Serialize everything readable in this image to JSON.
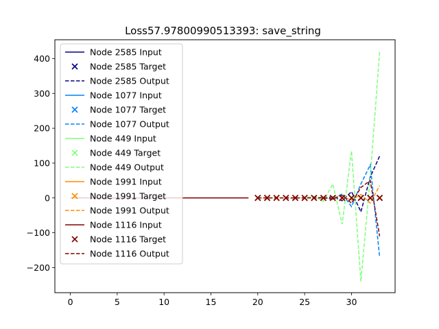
{
  "chart_data": {
    "type": "line",
    "title": "Loss57.97800990513393: save_string",
    "xlabel": "",
    "ylabel": "",
    "xlim": [
      -1.65,
      34.65
    ],
    "ylim": [
      -272,
      454
    ],
    "xticks": [
      0,
      5,
      10,
      15,
      20,
      25,
      30
    ],
    "yticks": [
      -200,
      -100,
      0,
      100,
      200,
      300,
      400
    ],
    "xtick_labels": [
      "0",
      "5",
      "10",
      "15",
      "20",
      "25",
      "30"
    ],
    "ytick_labels": [
      "−200",
      "−100",
      "0",
      "100",
      "200",
      "300",
      "400"
    ],
    "grid": false,
    "legend_position": "upper-left",
    "series": [
      {
        "name": "Node 2585",
        "color": "#000080",
        "input_label": "Node 2585 Input",
        "target_label": "Node 2585 Target",
        "output_label": "Node 2585 Output",
        "input": {
          "x": [
            0,
            19
          ],
          "y": [
            0,
            0
          ]
        },
        "target": {
          "x": [
            20,
            21,
            22,
            23,
            24,
            25,
            26,
            27,
            28,
            29,
            30,
            31,
            32,
            33
          ],
          "y": [
            0,
            0,
            0,
            0,
            0,
            0,
            0,
            0,
            0,
            0,
            0,
            0,
            0,
            0
          ]
        },
        "output": {
          "x": [
            20,
            21,
            22,
            23,
            24,
            25,
            26,
            27,
            28,
            29,
            30,
            31,
            32,
            33
          ],
          "y": [
            0,
            0,
            0,
            0,
            0,
            0,
            0,
            0,
            3,
            -8,
            18,
            -40,
            60,
            120
          ]
        }
      },
      {
        "name": "Node 1077",
        "color": "#0080ff",
        "input_label": "Node 1077 Input",
        "target_label": "Node 1077 Target",
        "output_label": "Node 1077 Output",
        "input": {
          "x": [
            0,
            19
          ],
          "y": [
            0,
            0
          ]
        },
        "target": {
          "x": [
            20,
            21,
            22,
            23,
            24,
            25,
            26,
            27,
            28,
            29,
            30,
            31,
            32,
            33
          ],
          "y": [
            0,
            0,
            0,
            0,
            0,
            0,
            0,
            0,
            0,
            0,
            0,
            0,
            0,
            0
          ]
        },
        "output": {
          "x": [
            20,
            21,
            22,
            23,
            24,
            25,
            26,
            27,
            28,
            29,
            30,
            31,
            32,
            33
          ],
          "y": [
            0,
            0,
            0,
            0,
            0,
            0,
            0,
            2,
            -5,
            12,
            -25,
            40,
            95,
            -170
          ]
        }
      },
      {
        "name": "Node 449",
        "color": "#7dff7a",
        "input_label": "Node 449 Input",
        "target_label": "Node 449 Target",
        "output_label": "Node 449 Output",
        "input": {
          "x": [
            0,
            19
          ],
          "y": [
            0,
            0
          ]
        },
        "target": {
          "x": [
            20,
            21,
            22,
            23,
            24,
            25,
            26,
            27,
            28,
            29,
            30,
            31,
            32,
            33
          ],
          "y": [
            0,
            0,
            0,
            0,
            0,
            0,
            0,
            0,
            0,
            0,
            0,
            0,
            0,
            0
          ]
        },
        "output": {
          "x": [
            20,
            21,
            22,
            23,
            24,
            25,
            26,
            27,
            28,
            29,
            30,
            31,
            32,
            33
          ],
          "y": [
            0,
            0,
            0,
            0,
            0,
            0,
            5,
            -10,
            40,
            -75,
            135,
            -240,
            60,
            420
          ]
        }
      },
      {
        "name": "Node 1991",
        "color": "#ff8c00",
        "input_label": "Node 1991 Input",
        "target_label": "Node 1991 Target",
        "output_label": "Node 1991 Output",
        "input": {
          "x": [
            0,
            19
          ],
          "y": [
            0,
            0
          ]
        },
        "target": {
          "x": [
            20,
            21,
            22,
            23,
            24,
            25,
            26,
            27,
            28,
            29,
            30,
            31,
            32,
            33
          ],
          "y": [
            0,
            0,
            0,
            0,
            0,
            0,
            0,
            0,
            0,
            0,
            0,
            0,
            0,
            0
          ]
        },
        "output": {
          "x": [
            20,
            21,
            22,
            23,
            24,
            25,
            26,
            27,
            28,
            29,
            30,
            31,
            32,
            33
          ],
          "y": [
            0,
            0,
            0,
            0,
            0,
            0,
            0,
            1,
            -2,
            4,
            -6,
            10,
            -15,
            35
          ]
        }
      },
      {
        "name": "Node 1116",
        "color": "#800000",
        "input_label": "Node 1116 Input",
        "target_label": "Node 1116 Target",
        "output_label": "Node 1116 Output",
        "input": {
          "x": [
            0,
            19
          ],
          "y": [
            0,
            0
          ]
        },
        "target": {
          "x": [
            20,
            21,
            22,
            23,
            24,
            25,
            26,
            27,
            28,
            29,
            30,
            31,
            32,
            33
          ],
          "y": [
            0,
            0,
            0,
            0,
            0,
            0,
            0,
            0,
            0,
            0,
            0,
            0,
            0,
            0
          ]
        },
        "output": {
          "x": [
            20,
            21,
            22,
            23,
            24,
            25,
            26,
            27,
            28,
            29,
            30,
            31,
            32,
            33
          ],
          "y": [
            0,
            0,
            0,
            0,
            0,
            0,
            0,
            0,
            -3,
            8,
            -15,
            30,
            50,
            -110
          ]
        }
      }
    ]
  }
}
